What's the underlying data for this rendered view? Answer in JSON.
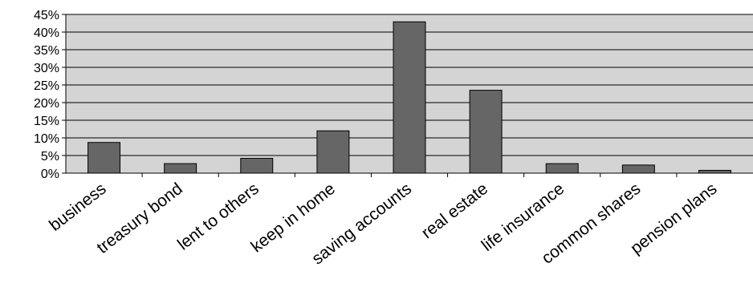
{
  "chart_data": {
    "type": "bar",
    "title": "",
    "xlabel": "",
    "ylabel": "",
    "categories": [
      "business",
      "treasury bond",
      "lent to others",
      "keep in home",
      "saving accounts",
      "real estate",
      "life insurance",
      "common shares",
      "pension plans"
    ],
    "values": [
      8.7,
      2.7,
      4.2,
      12.0,
      42.9,
      23.5,
      2.7,
      2.3,
      0.8
    ],
    "y_ticks": [
      "0%",
      "5%",
      "10%",
      "15%",
      "20%",
      "25%",
      "30%",
      "35%",
      "40%",
      "45%"
    ],
    "ylim": [
      0,
      45
    ],
    "y_unit": "%",
    "grid": true,
    "legend": "none",
    "colors": {
      "bar": "#666666",
      "bar_stroke": "#000000",
      "plot_background": "#d4d4d4",
      "gridline": "#000000"
    }
  }
}
